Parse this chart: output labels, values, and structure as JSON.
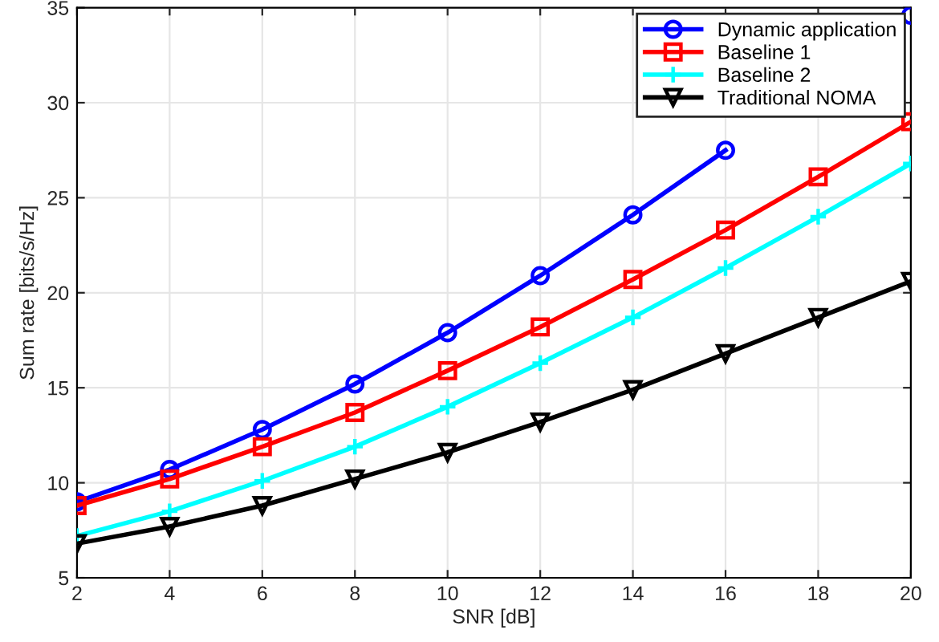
{
  "chart_data": {
    "type": "line",
    "xlabel": "SNR [dB]",
    "ylabel": "Sum rate [bits/s/Hz]",
    "x": [
      2,
      4,
      6,
      8,
      10,
      12,
      14,
      16,
      18,
      20
    ],
    "series": [
      {
        "name": "Dynamic application",
        "color": "#0000ff",
        "marker": "circle",
        "values": [
          9.0,
          10.7,
          12.8,
          15.2,
          17.9,
          20.9,
          24.1,
          27.5,
          null,
          34.6
        ]
      },
      {
        "name": "Baseline 1",
        "color": "#ff0000",
        "marker": "square",
        "values": [
          8.8,
          10.2,
          11.9,
          13.7,
          15.9,
          18.2,
          20.7,
          23.3,
          26.1,
          29.0
        ]
      },
      {
        "name": "Baseline 2",
        "color": "#00ffff",
        "marker": "cross",
        "values": [
          7.2,
          8.5,
          10.1,
          11.9,
          14.0,
          16.3,
          18.7,
          21.3,
          24.0,
          26.8
        ]
      },
      {
        "name": "Traditional NOMA",
        "color": "#000000",
        "marker": "triangle",
        "values": [
          6.8,
          7.7,
          8.8,
          10.2,
          11.6,
          13.2,
          14.9,
          16.8,
          18.7,
          20.6
        ]
      }
    ],
    "xlim": [
      2,
      20
    ],
    "xticks": [
      2,
      4,
      6,
      8,
      10,
      12,
      14,
      16,
      18,
      20
    ],
    "ylim": [
      5,
      35
    ],
    "yticks": [
      5,
      10,
      15,
      20,
      25,
      30,
      35
    ],
    "grid": true,
    "legend": "top right",
    "line_style": "solid"
  }
}
